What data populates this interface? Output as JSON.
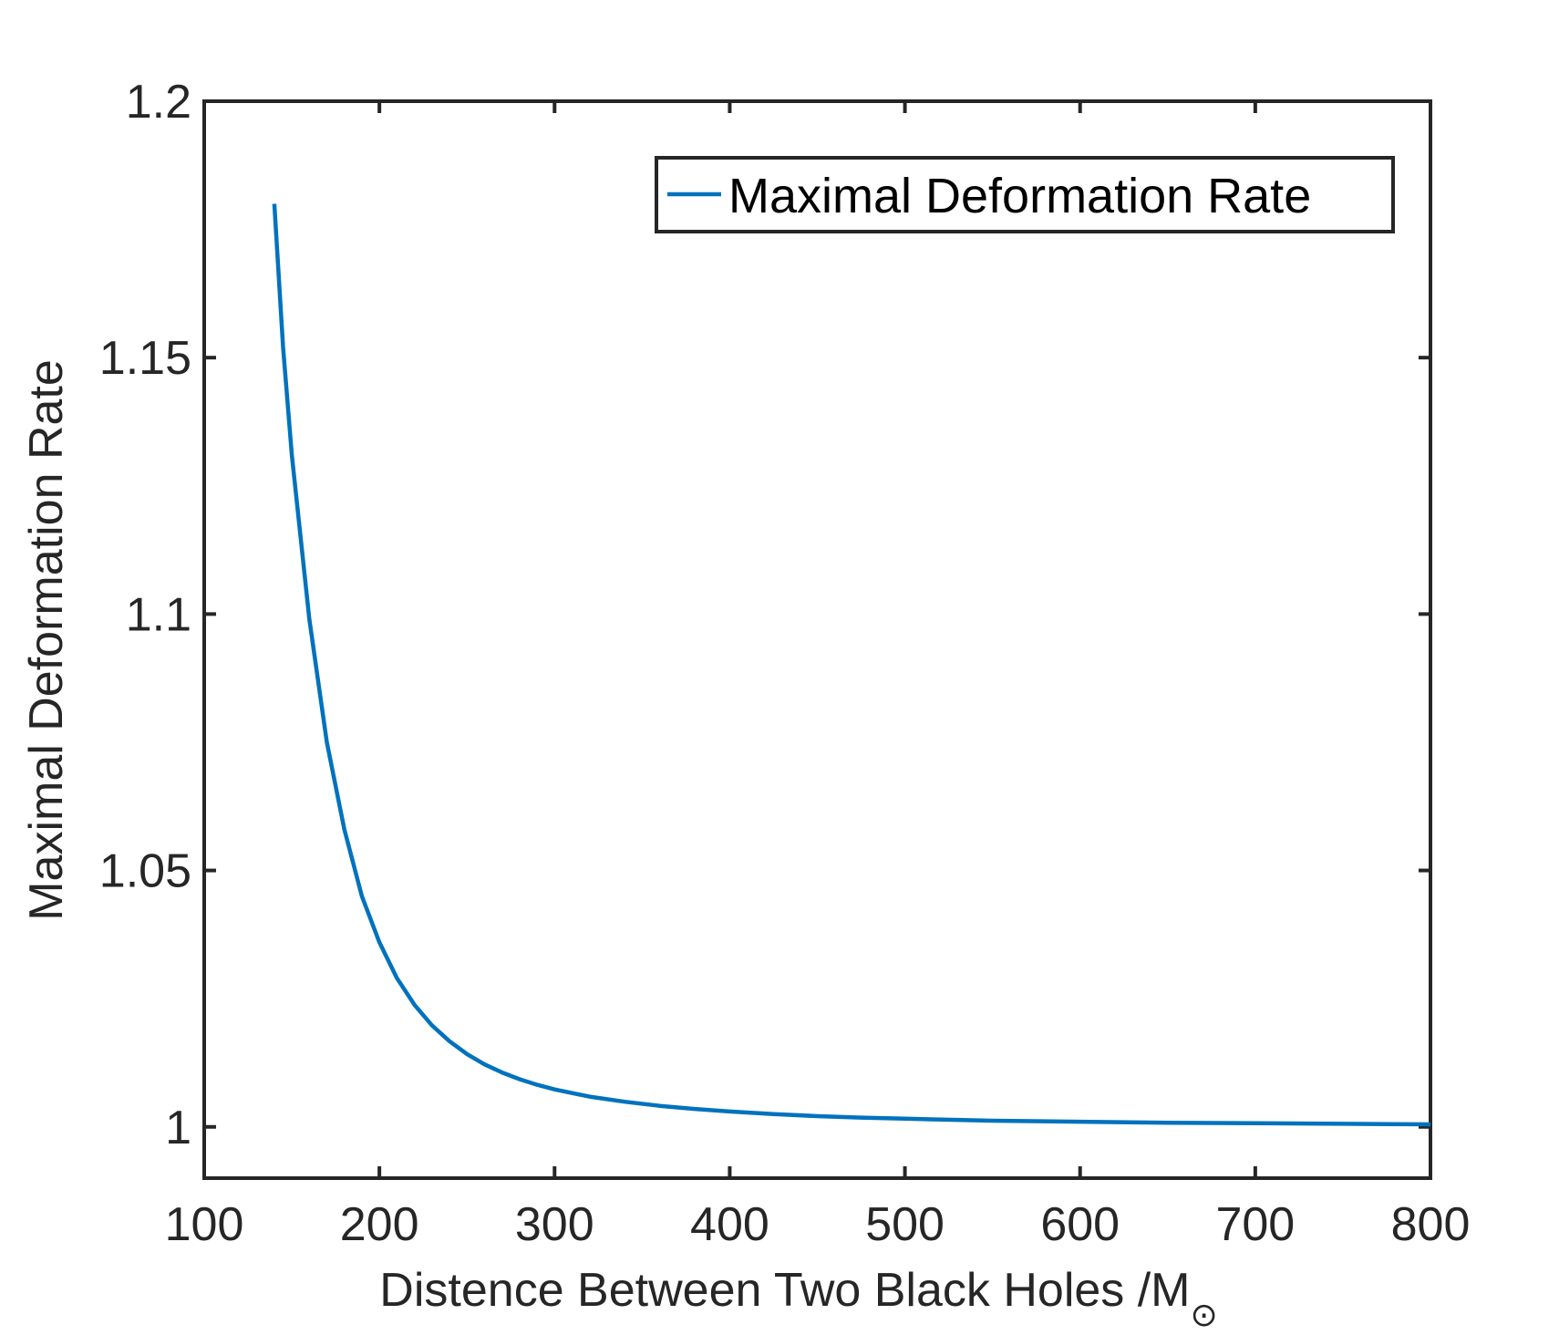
{
  "chart_data": {
    "type": "line",
    "title": "",
    "xlabel": "Distence Between Two Black Holes /M",
    "xlabel_subscript": "⊙",
    "ylabel": "Maximal Deformation Rate",
    "xlim": [
      100,
      800
    ],
    "ylim": [
      0.99,
      1.2
    ],
    "xticks": [
      100,
      200,
      300,
      400,
      500,
      600,
      700,
      800
    ],
    "yticks": [
      1,
      1.05,
      1.1,
      1.15,
      1.2
    ],
    "xtick_labels": [
      "100",
      "200",
      "300",
      "400",
      "500",
      "600",
      "700",
      "800"
    ],
    "ytick_labels": [
      "1",
      "1.05",
      "1.1",
      "1.15",
      "1.2"
    ],
    "grid": false,
    "legend_position": "top-right",
    "series": [
      {
        "name": "Maximal Deformation Rate",
        "color": "#0072BD",
        "x": [
          140,
          145,
          150,
          160,
          170,
          180,
          190,
          200,
          210,
          220,
          230,
          240,
          250,
          260,
          270,
          280,
          290,
          300,
          320,
          340,
          360,
          380,
          400,
          425,
          450,
          475,
          500,
          550,
          600,
          650,
          700,
          750,
          800
        ],
        "y": [
          1.18,
          1.152,
          1.131,
          1.099,
          1.075,
          1.058,
          1.045,
          1.036,
          1.029,
          1.0238,
          1.0198,
          1.0167,
          1.0142,
          1.0122,
          1.0106,
          1.0093,
          1.0082,
          1.0073,
          1.0059,
          1.0049,
          1.0041,
          1.0035,
          1.003,
          1.0025,
          1.0021,
          1.0018,
          1.0016,
          1.0012,
          1.001,
          1.0008,
          1.0007,
          1.0006,
          1.0005
        ]
      }
    ]
  },
  "colors": {
    "axes": "#262626",
    "line": "#0072BD",
    "background": "#ffffff"
  }
}
